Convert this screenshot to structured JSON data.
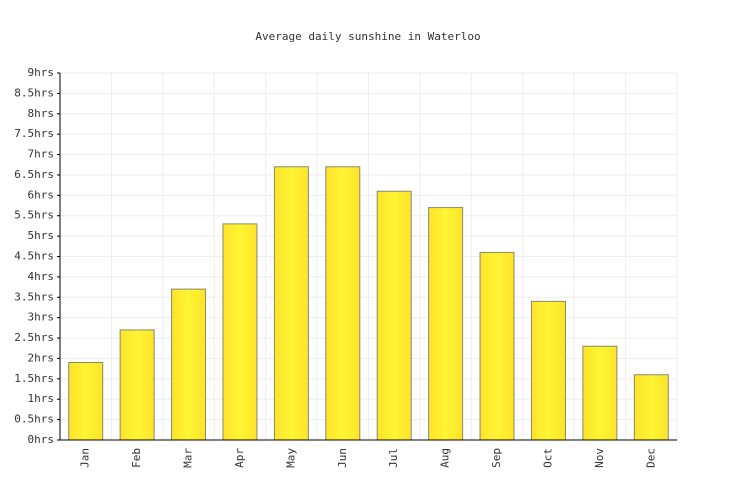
{
  "chart_data": {
    "type": "bar",
    "title": "Average daily sunshine in Waterloo",
    "categories": [
      "Jan",
      "Feb",
      "Mar",
      "Apr",
      "May",
      "Jun",
      "Jul",
      "Aug",
      "Sep",
      "Oct",
      "Nov",
      "Dec"
    ],
    "values": [
      1.9,
      2.7,
      3.7,
      5.3,
      6.7,
      6.7,
      6.1,
      5.7,
      4.6,
      3.4,
      2.3,
      1.6
    ],
    "color": "#fde32a",
    "ylim": [
      0,
      9
    ],
    "yticks": [
      {
        "value": 0,
        "label": "0hrs"
      },
      {
        "value": 0.5,
        "label": "0.5hrs"
      },
      {
        "value": 1,
        "label": "1hrs"
      },
      {
        "value": 1.5,
        "label": "1.5hrs"
      },
      {
        "value": 2,
        "label": "2hrs"
      },
      {
        "value": 2.5,
        "label": "2.5hrs"
      },
      {
        "value": 3,
        "label": "3hrs"
      },
      {
        "value": 3.5,
        "label": "3.5hrs"
      },
      {
        "value": 4,
        "label": "4hrs"
      },
      {
        "value": 4.5,
        "label": "4.5hrs"
      },
      {
        "value": 5,
        "label": "5hrs"
      },
      {
        "value": 5.5,
        "label": "5.5hrs"
      },
      {
        "value": 6,
        "label": "6hrs"
      },
      {
        "value": 6.5,
        "label": "6.5hrs"
      },
      {
        "value": 7,
        "label": "7hrs"
      },
      {
        "value": 7.5,
        "label": "7.5hrs"
      },
      {
        "value": 8,
        "label": "8hrs"
      },
      {
        "value": 8.5,
        "label": "8.5hrs"
      },
      {
        "value": 9,
        "label": "9hrs"
      }
    ],
    "grid": true
  }
}
